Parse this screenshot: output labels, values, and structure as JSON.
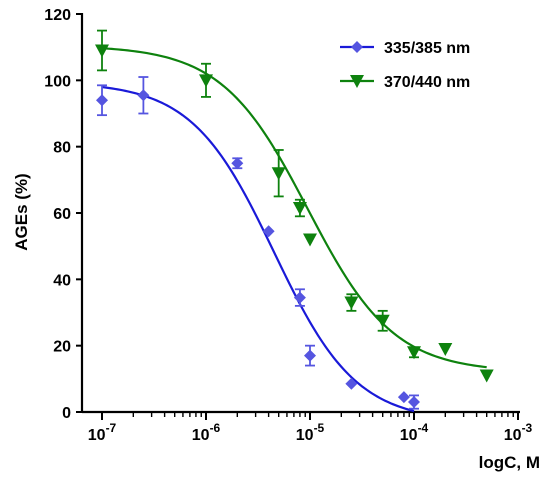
{
  "chart_data": {
    "type": "scatter",
    "title": "",
    "xlabel": "logC, M",
    "ylabel": "AGEs (%)",
    "x_scale": "log",
    "xlim": [
      1e-07,
      0.001
    ],
    "ylim": [
      0,
      120
    ],
    "x_ticks": [
      {
        "value": 1e-07,
        "base": "10",
        "exp": "-7"
      },
      {
        "value": 1e-06,
        "base": "10",
        "exp": "-6"
      },
      {
        "value": 1e-05,
        "base": "10",
        "exp": "-5"
      },
      {
        "value": 0.0001,
        "base": "10",
        "exp": "-4"
      },
      {
        "value": 0.001,
        "base": "10",
        "exp": "-3"
      }
    ],
    "y_ticks": [
      "0",
      "20",
      "40",
      "60",
      "80",
      "100",
      "120"
    ],
    "grid": false,
    "legend_position": "top-right",
    "series": [
      {
        "name": "335/385 nm",
        "color": "#5555e0",
        "fit_color": "#1a1ad8",
        "marker": "diamond",
        "fit": {
          "top": 99.5,
          "bottom": -3,
          "ec50": 4.5e-06,
          "hill": 1.1
        },
        "points": [
          {
            "x": 1e-07,
            "y": 94,
            "err": 4.5
          },
          {
            "x": 2.5e-07,
            "y": 95.5,
            "err": 5.5
          },
          {
            "x": 2e-06,
            "y": 75,
            "err": 1.5
          },
          {
            "x": 4e-06,
            "y": 54.5,
            "err": 0
          },
          {
            "x": 8e-06,
            "y": 34.5,
            "err": 2.5
          },
          {
            "x": 1e-05,
            "y": 17,
            "err": 3
          },
          {
            "x": 2.5e-05,
            "y": 8.5,
            "err": 0
          },
          {
            "x": 8e-05,
            "y": 4.5,
            "err": 0
          },
          {
            "x": 0.0001,
            "y": 3,
            "err": 2
          }
        ]
      },
      {
        "name": "370/440 nm",
        "color": "#0e820e",
        "fit_color": "#0e820e",
        "marker": "triangle-down",
        "fit": {
          "top": 110.5,
          "bottom": 12,
          "ec50": 9.5e-06,
          "hill": 1.05
        },
        "points": [
          {
            "x": 1e-07,
            "y": 109,
            "err": 6
          },
          {
            "x": 1e-06,
            "y": 100,
            "err": 5
          },
          {
            "x": 5e-06,
            "y": 72,
            "err": 7
          },
          {
            "x": 8e-06,
            "y": 61.5,
            "err": 2.5
          },
          {
            "x": 1e-05,
            "y": 52,
            "err": 0
          },
          {
            "x": 2.5e-05,
            "y": 33,
            "err": 2.5
          },
          {
            "x": 5e-05,
            "y": 27.5,
            "err": 3
          },
          {
            "x": 0.0001,
            "y": 18,
            "err": 1.5
          },
          {
            "x": 0.0002,
            "y": 19,
            "err": 0
          },
          {
            "x": 0.0005,
            "y": 11,
            "err": 0
          }
        ]
      }
    ]
  }
}
